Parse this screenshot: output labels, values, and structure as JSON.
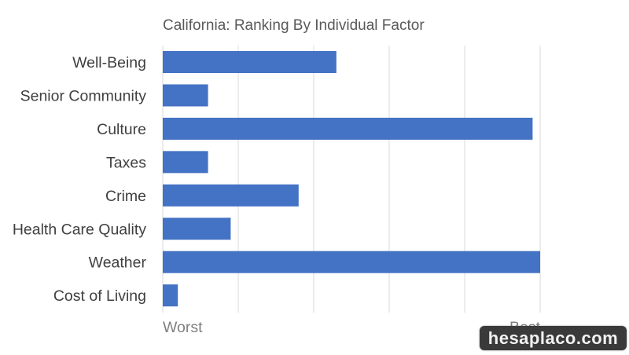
{
  "chart_data": {
    "type": "bar",
    "orientation": "horizontal",
    "title": "California: Ranking By Individual Factor",
    "categories": [
      "Well-Being",
      "Senior Community",
      "Culture",
      "Taxes",
      "Crime",
      "Health Care Quality",
      "Weather",
      "Cost of Living"
    ],
    "values": [
      23,
      6,
      49,
      6,
      18,
      9,
      50,
      2
    ],
    "xlim": [
      0,
      50
    ],
    "x_tick_labels": [
      {
        "value": 0,
        "label": "Worst"
      },
      {
        "value": 50,
        "label": "Best"
      }
    ],
    "grid": true,
    "gridline_values": [
      0,
      10,
      20,
      30,
      40,
      50
    ],
    "bar_color": "#4472C4"
  },
  "watermark": {
    "text": "hesaplaco.com"
  }
}
